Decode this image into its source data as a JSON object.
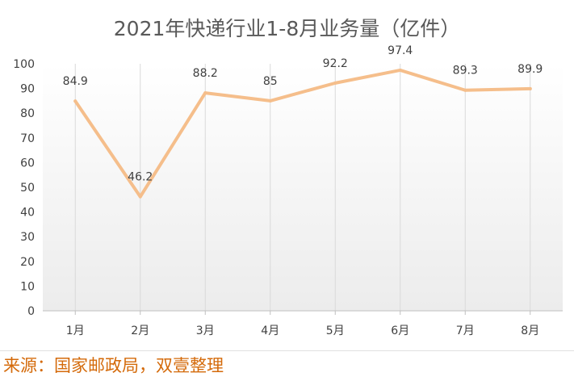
{
  "chart_data": {
    "type": "line",
    "title": "2021年快递行业1-8月业务量（亿件）",
    "categories": [
      "1月",
      "2月",
      "3月",
      "4月",
      "5月",
      "6月",
      "7月",
      "8月"
    ],
    "values": [
      84.9,
      46.2,
      88.2,
      85,
      92.2,
      97.4,
      89.3,
      89.9
    ],
    "data_labels": [
      "84.9",
      "46.2",
      "88.2",
      "85",
      "92.2",
      "97.4",
      "89.3",
      "89.9"
    ],
    "yticks": [
      "0",
      "10",
      "20",
      "30",
      "40",
      "50",
      "60",
      "70",
      "80",
      "90",
      "100"
    ],
    "ylim": [
      0,
      100
    ],
    "xlabel": "",
    "ylabel": "",
    "grid": "vertical",
    "line_color": "#f5be8b"
  },
  "footer": {
    "source": "来源：国家邮政局，双壹整理"
  }
}
